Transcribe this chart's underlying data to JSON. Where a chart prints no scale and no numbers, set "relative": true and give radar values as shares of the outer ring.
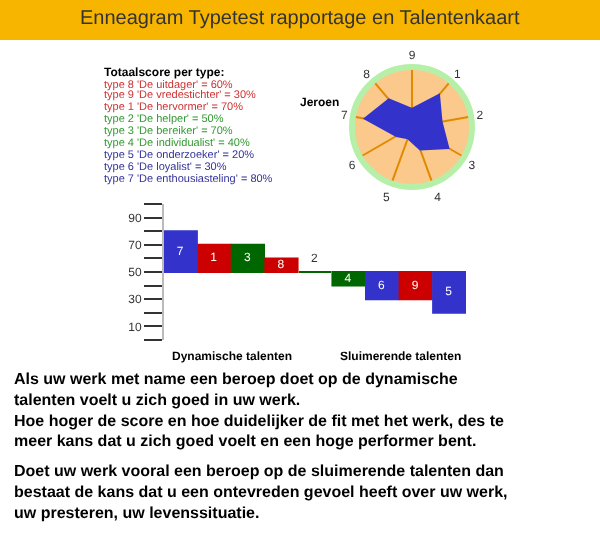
{
  "chart_data": [
    {
      "type": "other",
      "title": "Enneagram Typetest rapportage en Talentenkaart",
      "subtitle": "Totaalscore per type:",
      "annotations": [
        "type 8 'De uitdager' = 60%",
        "type 9 'De vredestichter' = 30%",
        "type 1 'De hervormer' = 70%",
        "type 2 'De helper' = 50%",
        "type 3 'De bereiker' = 70%",
        "type 4 'De individualist' = 40%",
        "type 5 'De onderzoeker' = 20%",
        "type 6 'De loyalist' = 30%",
        "type 7 'De enthousiasteling' = 80%"
      ],
      "colors": [
        "#cc3333",
        "#cc3333",
        "#cc3333",
        "#339933",
        "#339933",
        "#339933",
        "#333399",
        "#333399",
        "#333399"
      ]
    },
    {
      "type": "radar",
      "relative": true,
      "categories": [
        "9",
        "1",
        "2",
        "3",
        "4",
        "5",
        "6",
        "7",
        "8"
      ],
      "series": [
        {
          "name": "Jeroen",
          "color": "#3333cc",
          "values": [
            0.3,
            0.7,
            0.5,
            0.7,
            0.4,
            0.2,
            0.3,
            0.8,
            0.6
          ]
        }
      ]
    },
    {
      "type": "bar",
      "categories": [
        "7",
        "1",
        "3",
        "8",
        "2",
        "4",
        "6",
        "9",
        "5"
      ],
      "base": [
        50,
        50,
        50,
        50,
        50,
        50,
        50,
        50,
        50
      ],
      "values": [
        30,
        20,
        20,
        10,
        0,
        -10,
        -20,
        -20,
        -30
      ],
      "colors": [
        "#3333cc",
        "#cc0000",
        "#006600",
        "#cc0000",
        "#006600",
        "#006600",
        "#3333cc",
        "#cc0000",
        "#3333cc"
      ],
      "ylim": [
        0,
        100
      ],
      "yticks": [
        {
          "value": 0,
          "label": null
        },
        10,
        {
          "value": 20,
          "label": null
        },
        30,
        {
          "value": 40,
          "label": null
        },
        50,
        {
          "value": 60,
          "label": null
        },
        70,
        {
          "value": 80,
          "label": null
        },
        90,
        {
          "value": 100,
          "label": null
        }
      ],
      "tick_labels": "y",
      "annotations": [
        "Dynamische talenten",
        "Sluimerende talenten",
        "Als uw werk met name een beroep doet op de dynamische\ntalenten voelt u zich goed in uw werk.\nHoe hoger de score en hoe duidelijker de fit met het werk, des te\nmeer kans dat u zich goed voelt en een hoge performer bent.",
        "Doet uw werk vooral een beroep op de sluimerende talenten dan\nbestaat de kans dat u een ontevreden gevoel heeft over uw werk,\nuw presteren, uw levenssituatie."
      ]
    }
  ]
}
